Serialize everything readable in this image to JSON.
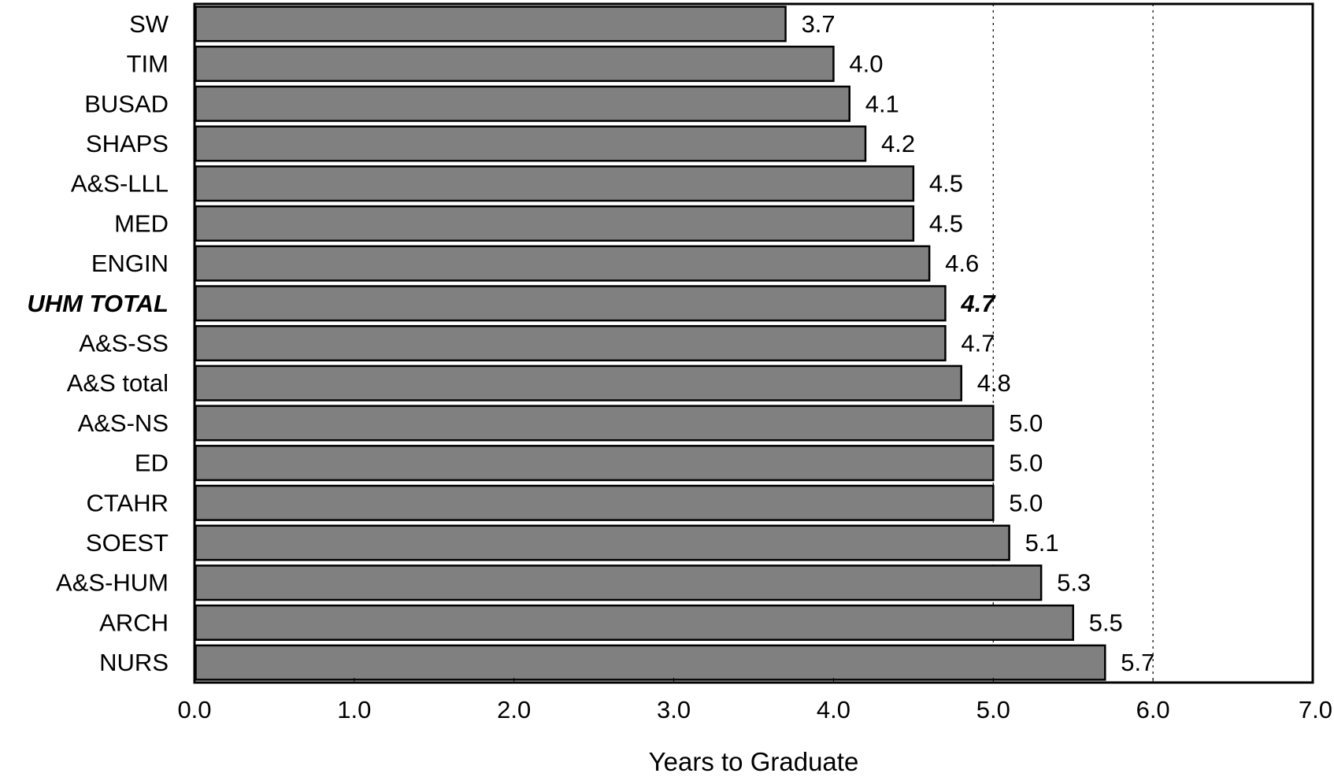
{
  "chart_data": {
    "type": "bar",
    "orientation": "horizontal",
    "title": "",
    "xlabel": "Years to Graduate",
    "ylabel": "",
    "xlim": [
      0,
      7
    ],
    "xticks": [
      "0.0",
      "1.0",
      "2.0",
      "3.0",
      "4.0",
      "5.0",
      "6.0",
      "7.0"
    ],
    "categories": [
      "SW",
      "TIM",
      "BUSAD",
      "SHAPS",
      "A&S-LLL",
      "MED",
      "ENGIN",
      "UHM TOTAL",
      "A&S-SS",
      "A&S total",
      "A&S-NS",
      "ED",
      "CTAHR",
      "SOEST",
      "A&S-HUM",
      "ARCH",
      "NURS"
    ],
    "values": [
      3.7,
      4.0,
      4.1,
      4.2,
      4.5,
      4.5,
      4.6,
      4.7,
      4.7,
      4.8,
      5.0,
      5.0,
      5.0,
      5.1,
      5.3,
      5.5,
      5.7
    ],
    "value_labels": [
      "3.7",
      "4.0",
      "4.1",
      "4.2",
      "4.5",
      "4.5",
      "4.6",
      "4.7",
      "4.7",
      "4.8",
      "5.0",
      "5.0",
      "5.0",
      "5.1",
      "5.3",
      "5.5",
      "5.7"
    ],
    "highlighted_category": "UHM TOTAL",
    "grid": "dotted vertical lines at 5.0 and 6.0",
    "legend": "none",
    "colors": {
      "bar": "#808080",
      "bar_border": "#000000",
      "axis": "#000000"
    }
  }
}
